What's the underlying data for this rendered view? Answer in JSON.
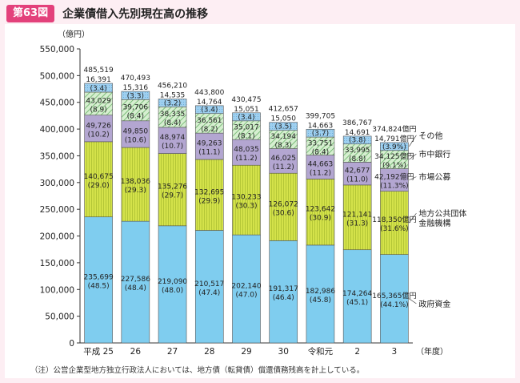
{
  "header": {
    "badge": "第63図",
    "title": "企業債借入先別現在高の推移"
  },
  "note": "（注）公営企業型地方独立行政法人においては、地方債（転貸債）償還債務残高を計上している。",
  "colors": {
    "seifu": "#7fcdef",
    "kikou": "#d4e24a",
    "shijo": "#b3a6d1",
    "shichu": "#a8dca0",
    "other": "#9fd0f0"
  },
  "chart_data": {
    "type": "bar",
    "stacked": true,
    "unit_label": "（億円）",
    "xlabel": "（年度）",
    "ylim": [
      0,
      550000
    ],
    "yticks": [
      "0",
      "50,000",
      "100,000",
      "150,000",
      "200,000",
      "250,000",
      "300,000",
      "350,000",
      "400,000",
      "450,000",
      "500,000",
      "550,000"
    ],
    "categories": [
      "平成 25",
      "26",
      "27",
      "28",
      "29",
      "30",
      "令和元",
      "2",
      "3"
    ],
    "totals": [
      485519,
      470493,
      456210,
      443800,
      430475,
      412657,
      399705,
      386767,
      374824
    ],
    "total_labels": [
      "485,519",
      "470,493",
      "456,210",
      "443,800",
      "430,475",
      "412,657",
      "399,705",
      "386,767",
      "374,824億円"
    ],
    "series": [
      {
        "name": "政府資金",
        "values": [
          235699,
          227586,
          219090,
          210517,
          202140,
          191317,
          182986,
          174264,
          165365
        ],
        "labels": [
          "235,699",
          "227,586",
          "219,090",
          "210,517",
          "202,140",
          "191,317",
          "182,986",
          "174,264",
          "165,365億円"
        ],
        "pct": [
          "(48.5)",
          "(48.4)",
          "(48.0)",
          "(47.4)",
          "(47.0)",
          "(46.4)",
          "(45.8)",
          "(45.1)",
          "(44.1%)"
        ]
      },
      {
        "name": "地方公共団体金融機構",
        "values": [
          140675,
          138036,
          135276,
          132695,
          130233,
          126072,
          123642,
          121141,
          118350
        ],
        "labels": [
          "140,675",
          "138,036",
          "135,276",
          "132,695",
          "130,233",
          "126,072",
          "123,642",
          "121,141",
          "118,350億円"
        ],
        "pct": [
          "(29.0)",
          "(29.3)",
          "(29.7)",
          "(29.9)",
          "(30.3)",
          "(30.6)",
          "(30.9)",
          "(31.3)",
          "(31.6%)"
        ]
      },
      {
        "name": "市場公募",
        "values": [
          49726,
          49850,
          48974,
          49263,
          48035,
          46025,
          44663,
          42677,
          42192
        ],
        "labels": [
          "49,726",
          "49,850",
          "48,974",
          "49,263",
          "48,035",
          "46,025",
          "44,663",
          "42,677",
          "42,192億円"
        ],
        "pct": [
          "(10.2)",
          "(10.6)",
          "(10.7)",
          "(11.1)",
          "(11.2)",
          "(11.2)",
          "(11.2)",
          "(11.0)",
          "(11.3%)"
        ]
      },
      {
        "name": "市中銀行",
        "values": [
          43029,
          39706,
          38335,
          36561,
          35017,
          34194,
          33751,
          33995,
          34125
        ],
        "labels": [
          "43,029",
          "39,706",
          "38,335",
          "36,561",
          "35,017",
          "34,194",
          "33,751",
          "33,995",
          "34,125億円"
        ],
        "pct": [
          "(8.9)",
          "(8.4)",
          "(8.4)",
          "(8.2)",
          "(8.1)",
          "(8.3)",
          "(8.4)",
          "(8.8)",
          "(9.1%)"
        ]
      },
      {
        "name": "その他",
        "values": [
          16391,
          15316,
          14535,
          14764,
          15051,
          15050,
          14663,
          14691,
          14791
        ],
        "labels": [
          "16,391",
          "15,316",
          "14,535",
          "14,764",
          "15,051",
          "15,050",
          "14,663",
          "14,691",
          "14,791億円"
        ],
        "pct": [
          "(3.4)",
          "(3.3)",
          "(3.2)",
          "(3.4)",
          "(3.4)",
          "(3.5)",
          "(3.7)",
          "(3.8)",
          "(3.9%)"
        ]
      }
    ],
    "legend": [
      "その他",
      "市中銀行",
      "市場公募",
      "地方公共団体\n金融機構",
      "政府資金"
    ]
  }
}
